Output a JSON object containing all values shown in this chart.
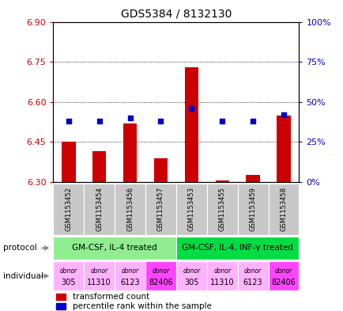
{
  "title": "GDS5384 / 8132130",
  "samples": [
    "GSM1153452",
    "GSM1153454",
    "GSM1153456",
    "GSM1153457",
    "GSM1153453",
    "GSM1153455",
    "GSM1153459",
    "GSM1153458"
  ],
  "red_values": [
    6.45,
    6.415,
    6.52,
    6.39,
    6.73,
    6.305,
    6.325,
    6.55
  ],
  "blue_values": [
    38,
    38,
    40,
    38,
    46,
    38,
    38,
    42
  ],
  "y_min": 6.3,
  "y_max": 6.9,
  "y_ticks": [
    6.3,
    6.45,
    6.6,
    6.75,
    6.9
  ],
  "y2_ticks": [
    0,
    25,
    50,
    75,
    100
  ],
  "protocol1": "GM-CSF, IL-4 treated",
  "protocol2": "GM-CSF, IL-4, INF-γ treated",
  "protocol1_color": "#90EE90",
  "protocol2_color": "#00DD44",
  "donor_colors": [
    "#FFB3FF",
    "#FFB3FF",
    "#FFB3FF",
    "#FF44FF"
  ],
  "donor_labels_top": [
    "donor",
    "donor",
    "donor",
    "donor"
  ],
  "donor_labels_bot": [
    "305",
    "11310",
    "6123",
    "82406"
  ],
  "bar_color": "#CC0000",
  "dot_color": "#0000CC",
  "label_color_red": "#CC0000",
  "label_color_blue": "#0000CC",
  "tick_area_bg": "#C8C8C8",
  "legend_red_label": "transformed count",
  "legend_blue_label": "percentile rank within the sample"
}
